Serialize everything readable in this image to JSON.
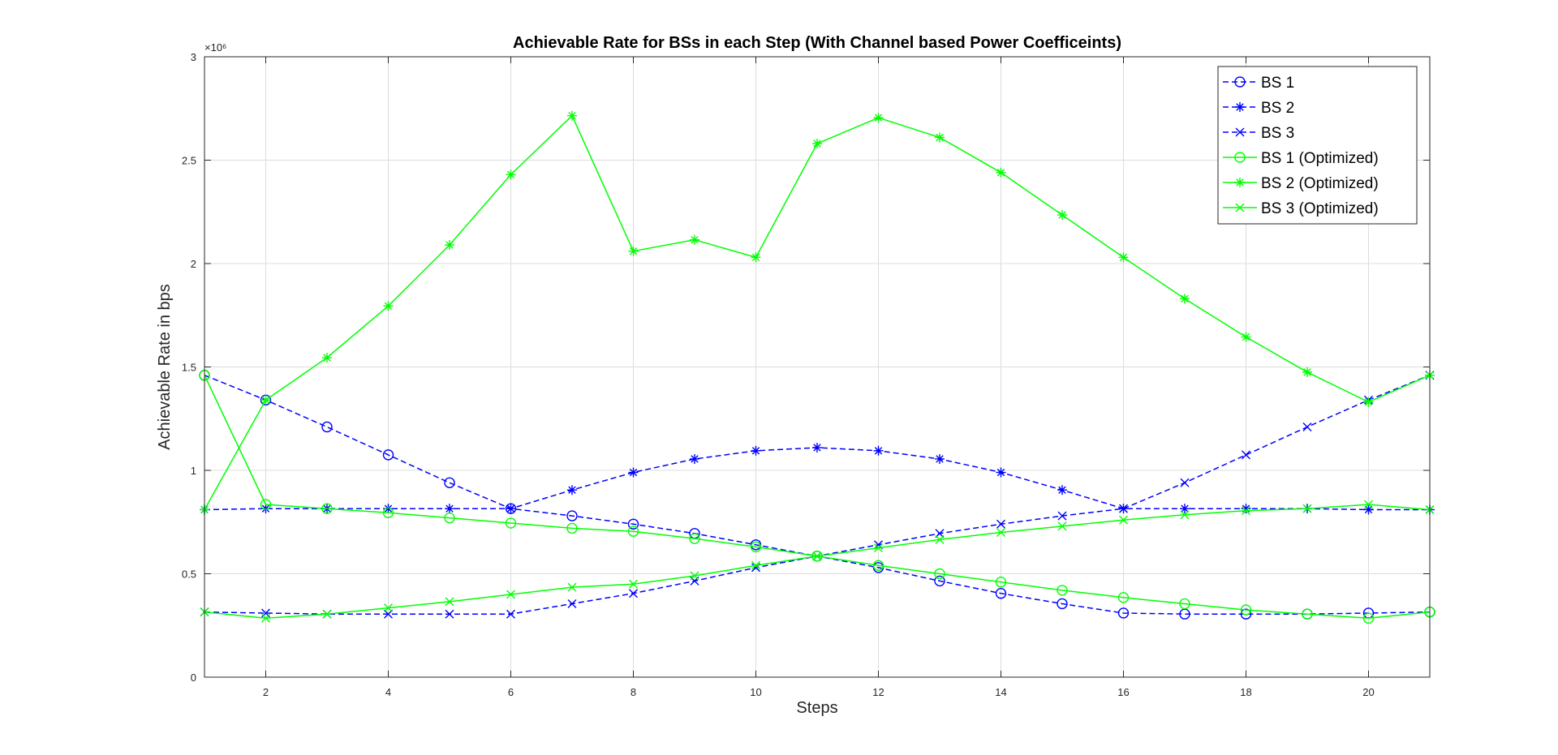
{
  "chart_data": {
    "type": "line",
    "title": "Achievable Rate for BSs in each Step (With Channel based Power Coefficeints)",
    "xlabel": "Steps",
    "ylabel": "Achievable Rate in bps",
    "y_exponent_label": "×10⁶",
    "xlim": [
      1,
      21
    ],
    "ylim": [
      0,
      3000000
    ],
    "xticks": [
      2,
      4,
      6,
      8,
      10,
      12,
      14,
      16,
      18,
      20
    ],
    "xtick_labels": [
      "2",
      "4",
      "6",
      "8",
      "10",
      "12",
      "14",
      "16",
      "18",
      "20"
    ],
    "yticks": [
      0,
      500000,
      1000000,
      1500000,
      2000000,
      2500000,
      3000000
    ],
    "ytick_labels": [
      "0",
      "0.5",
      "1",
      "1.5",
      "2",
      "2.5",
      "3"
    ],
    "grid": true,
    "legend_position": "top-right",
    "x": [
      1,
      2,
      3,
      4,
      5,
      6,
      7,
      8,
      9,
      10,
      11,
      12,
      13,
      14,
      15,
      16,
      17,
      18,
      19,
      20,
      21
    ],
    "series": [
      {
        "name": "BS 1",
        "color": "#0000ff",
        "dash": "dashed",
        "marker": "circle",
        "values": [
          1460000,
          1340000,
          1210000,
          1075000,
          940000,
          815000,
          780000,
          740000,
          695000,
          640000,
          585000,
          530000,
          465000,
          405000,
          355000,
          310000,
          305000,
          305000,
          305000,
          310000,
          315000
        ]
      },
      {
        "name": "BS 2",
        "color": "#0000ff",
        "dash": "dashed",
        "marker": "asterisk",
        "values": [
          810000,
          815000,
          815000,
          815000,
          815000,
          815000,
          905000,
          990000,
          1055000,
          1095000,
          1110000,
          1095000,
          1055000,
          990000,
          905000,
          815000,
          815000,
          815000,
          815000,
          810000,
          810000
        ]
      },
      {
        "name": "BS 3",
        "color": "#0000ff",
        "dash": "dashed",
        "marker": "x",
        "values": [
          315000,
          310000,
          305000,
          305000,
          305000,
          305000,
          355000,
          405000,
          465000,
          530000,
          585000,
          640000,
          695000,
          740000,
          780000,
          815000,
          940000,
          1075000,
          1210000,
          1340000,
          1460000
        ]
      },
      {
        "name": "BS 1 (Optimized)",
        "color": "#00ff00",
        "dash": "solid",
        "marker": "circle",
        "values": [
          1460000,
          835000,
          815000,
          795000,
          770000,
          745000,
          720000,
          705000,
          670000,
          630000,
          585000,
          540000,
          500000,
          460000,
          420000,
          385000,
          355000,
          325000,
          305000,
          285000,
          315000
        ]
      },
      {
        "name": "BS 2 (Optimized)",
        "color": "#00ff00",
        "dash": "solid",
        "marker": "asterisk",
        "values": [
          810000,
          1340000,
          1545000,
          1795000,
          2090000,
          2430000,
          2715000,
          2060000,
          2115000,
          2030000,
          2580000,
          2705000,
          2610000,
          2440000,
          2235000,
          2030000,
          1830000,
          1645000,
          1475000,
          1330000,
          1460000
        ]
      },
      {
        "name": "BS 3 (Optimized)",
        "color": "#00ff00",
        "dash": "solid",
        "marker": "x",
        "values": [
          315000,
          285000,
          305000,
          335000,
          365000,
          400000,
          435000,
          450000,
          490000,
          540000,
          585000,
          625000,
          665000,
          700000,
          730000,
          760000,
          785000,
          805000,
          815000,
          835000,
          810000
        ]
      }
    ]
  }
}
